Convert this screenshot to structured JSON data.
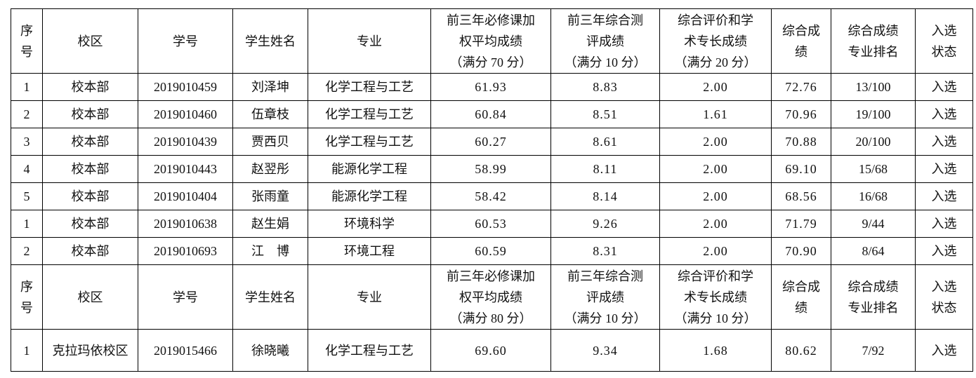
{
  "headers_1": [
    "序\n号",
    "校区",
    "学号",
    "学生姓名",
    "专业",
    "前三年必修课加\n权平均成绩\n（满分 70 分）",
    "前三年综合测\n评成绩\n（满分 10 分）",
    "综合评价和学\n术专长成绩\n（满分 20 分）",
    "综合成\n绩",
    "综合成绩\n专业排名",
    "入选\n状态"
  ],
  "rows_1": [
    [
      "1",
      "校本部",
      "2019010459",
      "刘泽坤",
      "化学工程与工艺",
      "61.93",
      "8.83",
      "2.00",
      "72.76",
      "13/100",
      "入选"
    ],
    [
      "2",
      "校本部",
      "2019010460",
      "伍章枝",
      "化学工程与工艺",
      "60.84",
      "8.51",
      "1.61",
      "70.96",
      "19/100",
      "入选"
    ],
    [
      "3",
      "校本部",
      "2019010439",
      "贾西贝",
      "化学工程与工艺",
      "60.27",
      "8.61",
      "2.00",
      "70.88",
      "20/100",
      "入选"
    ],
    [
      "4",
      "校本部",
      "2019010443",
      "赵翌彤",
      "能源化学工程",
      "58.99",
      "8.11",
      "2.00",
      "69.10",
      "15/68",
      "入选"
    ],
    [
      "5",
      "校本部",
      "2019010404",
      "张雨童",
      "能源化学工程",
      "58.42",
      "8.14",
      "2.00",
      "68.56",
      "16/68",
      "入选"
    ],
    [
      "1",
      "校本部",
      "2019010638",
      "赵生娟",
      "环境科学",
      "60.53",
      "9.26",
      "2.00",
      "71.79",
      "9/44",
      "入选"
    ],
    [
      "2",
      "校本部",
      "2019010693",
      "江　博",
      "环境工程",
      "60.59",
      "8.31",
      "2.00",
      "70.90",
      "8/64",
      "入选"
    ]
  ],
  "headers_2": [
    "序\n号",
    "校区",
    "学号",
    "学生姓名",
    "专业",
    "前三年必修课加\n权平均成绩\n（满分 80 分）",
    "前三年综合测\n评成绩\n（满分 10 分）",
    "综合评价和学\n术专长成绩\n（满分 10 分）",
    "综合成\n绩",
    "综合成绩\n专业排名",
    "入选\n状态"
  ],
  "rows_2": [
    [
      "1",
      "克拉玛依校区",
      "2019015466",
      "徐晓曦",
      "化学工程与工艺",
      "69.60",
      "9.34",
      "1.68",
      "80.62",
      "7/92",
      "入选"
    ]
  ]
}
